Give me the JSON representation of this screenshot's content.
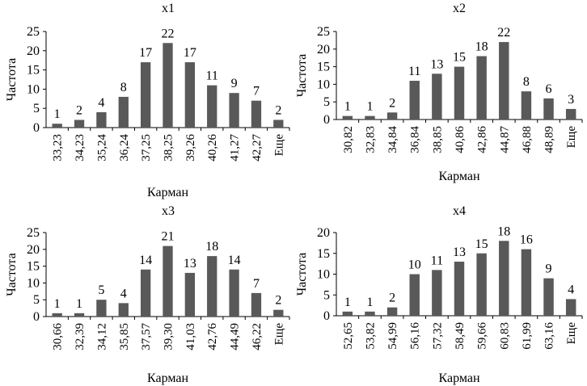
{
  "chart_data": [
    {
      "type": "bar",
      "title": "x1",
      "xlabel": "Карман",
      "ylabel": "Частота",
      "ylim": [
        0,
        25
      ],
      "yticks": [
        "0",
        "5",
        "10",
        "15",
        "20",
        "25"
      ],
      "categories": [
        "33,23",
        "34,23",
        "35,24",
        "36,24",
        "37,25",
        "38,25",
        "39,26",
        "40,26",
        "41,27",
        "42,27",
        "Еще"
      ],
      "values": [
        1,
        2,
        4,
        8,
        17,
        22,
        17,
        11,
        9,
        7,
        2
      ],
      "color": "#595959"
    },
    {
      "type": "bar",
      "title": "x2",
      "xlabel": "Карман",
      "ylabel": "Частота",
      "ylim": [
        0,
        25
      ],
      "yticks": [
        "0",
        "5",
        "10",
        "15",
        "20",
        "25"
      ],
      "categories": [
        "30,82",
        "32,83",
        "34,84",
        "36,84",
        "38,85",
        "40,86",
        "42,86",
        "44,87",
        "46,88",
        "48,89",
        "Еще"
      ],
      "values": [
        1,
        1,
        2,
        11,
        13,
        15,
        18,
        22,
        8,
        6,
        3
      ],
      "color": "#595959"
    },
    {
      "type": "bar",
      "title": "x3",
      "xlabel": "Карман",
      "ylabel": "Частота",
      "ylim": [
        0,
        25
      ],
      "yticks": [
        "0",
        "5",
        "10",
        "15",
        "20",
        "25"
      ],
      "categories": [
        "30,66",
        "32,39",
        "34,12",
        "35,85",
        "37,57",
        "39,30",
        "41,03",
        "42,76",
        "44,49",
        "46,22",
        "Еще"
      ],
      "values": [
        1,
        1,
        5,
        4,
        14,
        21,
        13,
        18,
        14,
        7,
        2
      ],
      "color": "#595959"
    },
    {
      "type": "bar",
      "title": "x4",
      "xlabel": "Карман",
      "ylabel": "Частота",
      "ylim": [
        0,
        20
      ],
      "yticks": [
        "0",
        "5",
        "10",
        "15",
        "20"
      ],
      "categories": [
        "52,65",
        "53,82",
        "54,99",
        "56,16",
        "57,32",
        "58,49",
        "59,66",
        "60,83",
        "61,99",
        "63,16",
        "Еще"
      ],
      "values": [
        1,
        1,
        2,
        10,
        11,
        13,
        15,
        18,
        16,
        9,
        4
      ],
      "color": "#595959"
    }
  ]
}
